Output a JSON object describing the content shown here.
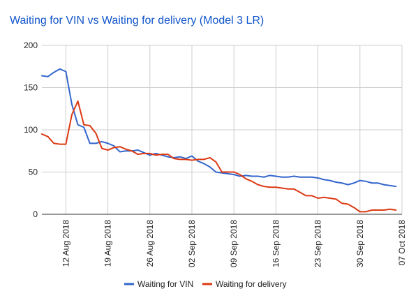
{
  "chart_data": {
    "type": "line",
    "title": "Waiting for VIN vs Waiting for delivery (Model 3 LR)",
    "xlabel": "",
    "ylabel": "",
    "ylim": [
      0,
      200
    ],
    "yticks": [
      "0",
      "50",
      "100",
      "150",
      "200"
    ],
    "xlim": [
      "2018-08-08",
      "2018-10-07"
    ],
    "xticks": [
      {
        "date": "2018-08-12",
        "label": "12 Aug 2018"
      },
      {
        "date": "2018-08-19",
        "label": "19 Aug 2018"
      },
      {
        "date": "2018-08-26",
        "label": "26 Aug 2018"
      },
      {
        "date": "2018-09-02",
        "label": "02 Sep 2018"
      },
      {
        "date": "2018-09-09",
        "label": "09 Sep 2018"
      },
      {
        "date": "2018-09-16",
        "label": "16 Sep 2018"
      },
      {
        "date": "2018-09-23",
        "label": "23 Sep 2018"
      },
      {
        "date": "2018-09-30",
        "label": "30 Sep 2018"
      },
      {
        "date": "2018-10-07",
        "label": "07 Oct 2018"
      }
    ],
    "grid": true,
    "legend_position": "bottom",
    "series": [
      {
        "name": "Waiting for VIN",
        "color": "#3366cc",
        "points": [
          [
            "2018-08-08",
            164
          ],
          [
            "2018-08-09",
            163
          ],
          [
            "2018-08-10",
            168
          ],
          [
            "2018-08-11",
            172
          ],
          [
            "2018-08-12",
            169
          ],
          [
            "2018-08-13",
            130
          ],
          [
            "2018-08-14",
            106
          ],
          [
            "2018-08-15",
            103
          ],
          [
            "2018-08-16",
            84
          ],
          [
            "2018-08-17",
            84
          ],
          [
            "2018-08-18",
            86
          ],
          [
            "2018-08-19",
            84
          ],
          [
            "2018-08-20",
            81
          ],
          [
            "2018-08-21",
            74
          ],
          [
            "2018-08-22",
            75
          ],
          [
            "2018-08-23",
            75
          ],
          [
            "2018-08-24",
            76
          ],
          [
            "2018-08-25",
            73
          ],
          [
            "2018-08-26",
            70
          ],
          [
            "2018-08-27",
            72
          ],
          [
            "2018-08-28",
            70
          ],
          [
            "2018-08-29",
            68
          ],
          [
            "2018-08-30",
            67
          ],
          [
            "2018-08-31",
            68
          ],
          [
            "2018-09-01",
            66
          ],
          [
            "2018-09-02",
            69
          ],
          [
            "2018-09-03",
            63
          ],
          [
            "2018-09-04",
            60
          ],
          [
            "2018-09-05",
            56
          ],
          [
            "2018-09-06",
            50
          ],
          [
            "2018-09-07",
            49
          ],
          [
            "2018-09-08",
            48
          ],
          [
            "2018-09-09",
            47
          ],
          [
            "2018-09-10",
            45
          ],
          [
            "2018-09-11",
            46
          ],
          [
            "2018-09-12",
            45
          ],
          [
            "2018-09-13",
            45
          ],
          [
            "2018-09-14",
            44
          ],
          [
            "2018-09-15",
            46
          ],
          [
            "2018-09-16",
            45
          ],
          [
            "2018-09-17",
            44
          ],
          [
            "2018-09-18",
            44
          ],
          [
            "2018-09-19",
            45
          ],
          [
            "2018-09-20",
            44
          ],
          [
            "2018-09-21",
            44
          ],
          [
            "2018-09-22",
            44
          ],
          [
            "2018-09-23",
            43
          ],
          [
            "2018-09-24",
            41
          ],
          [
            "2018-09-25",
            40
          ],
          [
            "2018-09-26",
            38
          ],
          [
            "2018-09-27",
            37
          ],
          [
            "2018-09-28",
            35
          ],
          [
            "2018-09-29",
            37
          ],
          [
            "2018-09-30",
            40
          ],
          [
            "2018-10-01",
            39
          ],
          [
            "2018-10-02",
            37
          ],
          [
            "2018-10-03",
            37
          ],
          [
            "2018-10-04",
            35
          ],
          [
            "2018-10-05",
            34
          ],
          [
            "2018-10-06",
            33
          ]
        ]
      },
      {
        "name": "Waiting for delivery",
        "color": "#dc3912",
        "points": [
          [
            "2018-08-08",
            95
          ],
          [
            "2018-08-09",
            92
          ],
          [
            "2018-08-10",
            84
          ],
          [
            "2018-08-11",
            83
          ],
          [
            "2018-08-12",
            83
          ],
          [
            "2018-08-13",
            118
          ],
          [
            "2018-08-14",
            134
          ],
          [
            "2018-08-15",
            106
          ],
          [
            "2018-08-16",
            105
          ],
          [
            "2018-08-17",
            96
          ],
          [
            "2018-08-18",
            78
          ],
          [
            "2018-08-19",
            76
          ],
          [
            "2018-08-20",
            79
          ],
          [
            "2018-08-21",
            80
          ],
          [
            "2018-08-22",
            77
          ],
          [
            "2018-08-23",
            75
          ],
          [
            "2018-08-24",
            71
          ],
          [
            "2018-08-25",
            72
          ],
          [
            "2018-08-26",
            72
          ],
          [
            "2018-08-27",
            70
          ],
          [
            "2018-08-28",
            71
          ],
          [
            "2018-08-29",
            71
          ],
          [
            "2018-08-30",
            66
          ],
          [
            "2018-08-31",
            65
          ],
          [
            "2018-09-01",
            65
          ],
          [
            "2018-09-02",
            64
          ],
          [
            "2018-09-03",
            65
          ],
          [
            "2018-09-04",
            65
          ],
          [
            "2018-09-05",
            67
          ],
          [
            "2018-09-06",
            62
          ],
          [
            "2018-09-07",
            50
          ],
          [
            "2018-09-08",
            50
          ],
          [
            "2018-09-09",
            50
          ],
          [
            "2018-09-10",
            47
          ],
          [
            "2018-09-11",
            42
          ],
          [
            "2018-09-12",
            39
          ],
          [
            "2018-09-13",
            35
          ],
          [
            "2018-09-14",
            33
          ],
          [
            "2018-09-15",
            32
          ],
          [
            "2018-09-16",
            32
          ],
          [
            "2018-09-17",
            31
          ],
          [
            "2018-09-18",
            30
          ],
          [
            "2018-09-19",
            30
          ],
          [
            "2018-09-20",
            26
          ],
          [
            "2018-09-21",
            22
          ],
          [
            "2018-09-22",
            22
          ],
          [
            "2018-09-23",
            19
          ],
          [
            "2018-09-24",
            20
          ],
          [
            "2018-09-25",
            19
          ],
          [
            "2018-09-26",
            18
          ],
          [
            "2018-09-27",
            13
          ],
          [
            "2018-09-28",
            12
          ],
          [
            "2018-09-29",
            8
          ],
          [
            "2018-09-30",
            3
          ],
          [
            "2018-10-01",
            3
          ],
          [
            "2018-10-02",
            5
          ],
          [
            "2018-10-03",
            5
          ],
          [
            "2018-10-04",
            5
          ],
          [
            "2018-10-05",
            6
          ],
          [
            "2018-10-06",
            5
          ]
        ]
      }
    ]
  },
  "colors": {
    "title": "#1155cc",
    "gridline": "#cccccc",
    "baseline": "#333333"
  }
}
